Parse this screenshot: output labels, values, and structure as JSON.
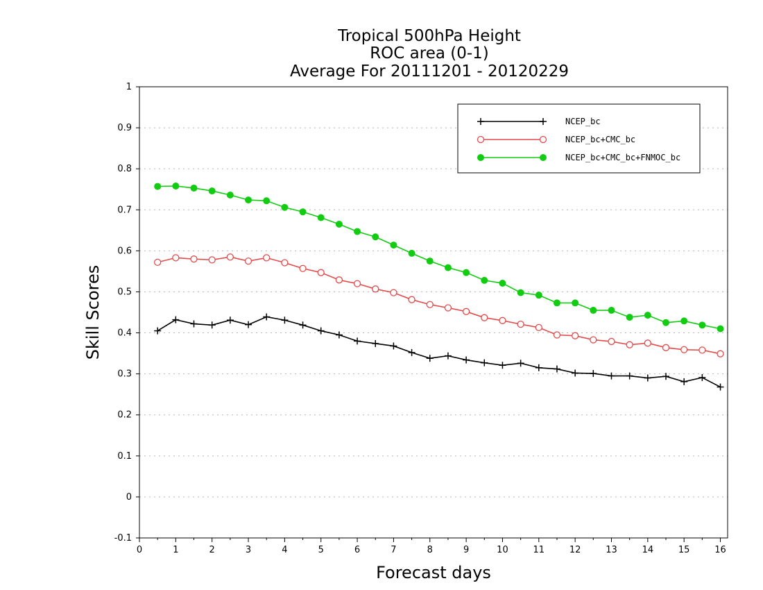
{
  "chart_data": {
    "type": "line",
    "title_lines": [
      "Tropical 500hPa Height",
      "ROC area (0-1)",
      "Average For 20111201 - 20120229"
    ],
    "xlabel": "Forecast days",
    "ylabel": "Skill Scores",
    "xlim": [
      0,
      16.2
    ],
    "ylim": [
      -0.1,
      1
    ],
    "x_ticks": [
      "0",
      "1",
      "2",
      "3",
      "4",
      "5",
      "6",
      "7",
      "8",
      "9",
      "10",
      "11",
      "12",
      "13",
      "14",
      "15",
      "16"
    ],
    "y_ticks": [
      "-0.1",
      "0",
      "0.1",
      "0.2",
      "0.3",
      "0.4",
      "0.5",
      "0.6",
      "0.7",
      "0.8",
      "0.9",
      "1"
    ],
    "grid": true,
    "legend_position": "top-right",
    "x": [
      0.5,
      1,
      1.5,
      2,
      2.5,
      3,
      3.5,
      4,
      4.5,
      5,
      5.5,
      6,
      6.5,
      7,
      7.5,
      8,
      8.5,
      9,
      9.5,
      10,
      10.5,
      11,
      11.5,
      12,
      12.5,
      13,
      13.5,
      14,
      14.5,
      15,
      15.5,
      16
    ],
    "series": [
      {
        "name": "NCEP_bc",
        "color": "#000000",
        "marker": "plus",
        "values": [
          0.405,
          0.432,
          0.422,
          0.419,
          0.431,
          0.42,
          0.439,
          0.431,
          0.419,
          0.405,
          0.395,
          0.38,
          0.374,
          0.368,
          0.352,
          0.338,
          0.344,
          0.334,
          0.327,
          0.321,
          0.326,
          0.315,
          0.312,
          0.302,
          0.301,
          0.295,
          0.295,
          0.29,
          0.294,
          0.281,
          0.291,
          0.268
        ]
      },
      {
        "name": "NCEP_bc+CMC_bc",
        "color": "#e34a4a",
        "marker": "open-circle",
        "values": [
          0.572,
          0.583,
          0.58,
          0.578,
          0.585,
          0.575,
          0.583,
          0.571,
          0.557,
          0.547,
          0.529,
          0.52,
          0.507,
          0.498,
          0.481,
          0.469,
          0.461,
          0.452,
          0.437,
          0.43,
          0.421,
          0.413,
          0.395,
          0.393,
          0.383,
          0.379,
          0.371,
          0.375,
          0.364,
          0.359,
          0.358,
          0.349
        ]
      },
      {
        "name": "NCEP_bc+CMC_bc+FNMOC_bc",
        "color": "#12cc12",
        "marker": "filled-circle",
        "values": [
          0.757,
          0.758,
          0.753,
          0.746,
          0.736,
          0.724,
          0.722,
          0.706,
          0.695,
          0.681,
          0.665,
          0.647,
          0.634,
          0.614,
          0.594,
          0.575,
          0.559,
          0.547,
          0.528,
          0.521,
          0.498,
          0.492,
          0.473,
          0.473,
          0.455,
          0.455,
          0.438,
          0.443,
          0.425,
          0.429,
          0.419,
          0.41
        ]
      }
    ]
  }
}
